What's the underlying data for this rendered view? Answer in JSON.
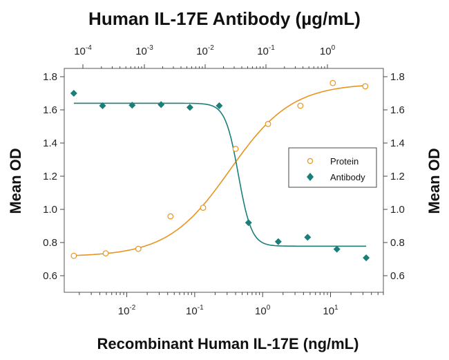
{
  "chart_data": {
    "type": "scatter",
    "title": "Human IL-17E Antibody (µg/mL)",
    "xlabel": "Recombinant Human IL-17E  (ng/mL)",
    "ylabel_left": "Mean OD",
    "ylabel_right": "Mean OD",
    "x_scale": "log",
    "xlim": [
      0.0012,
      60
    ],
    "ylim": [
      0.5,
      1.85
    ],
    "bottom_ticks": [
      {
        "value": 0.01,
        "base": "10",
        "exp": "-2"
      },
      {
        "value": 0.1,
        "base": "10",
        "exp": "-1"
      },
      {
        "value": 1,
        "base": "10",
        "exp": "0"
      },
      {
        "value": 10,
        "base": "10",
        "exp": "1"
      }
    ],
    "top_axis": {
      "label": "Human IL-17E Antibody (µg/mL)",
      "ticks": [
        {
          "base": "10",
          "exp": "-4"
        },
        {
          "base": "10",
          "exp": "-3"
        },
        {
          "base": "10",
          "exp": "-2"
        },
        {
          "base": "10",
          "exp": "-1"
        },
        {
          "base": "10",
          "exp": "0"
        }
      ]
    },
    "y_ticks": [
      "0.6",
      "0.8",
      "1.0",
      "1.2",
      "1.4",
      "1.6",
      "1.8"
    ],
    "legend": {
      "position": "right-middle",
      "entries": [
        {
          "label": "Protein",
          "marker": "circle",
          "color": "#e8941e"
        },
        {
          "label": "Antibody",
          "marker": "diamond",
          "color": "#1a7e79"
        }
      ]
    },
    "series": [
      {
        "name": "Protein",
        "marker": "open-circle",
        "color": "#e8941e",
        "x": [
          0.00166,
          0.0049,
          0.0148,
          0.044,
          0.133,
          0.4,
          1.2,
          3.6,
          10.8,
          32.5
        ],
        "y": [
          0.72,
          0.735,
          0.762,
          0.958,
          1.01,
          1.365,
          1.515,
          1.625,
          1.762,
          1.742
        ],
        "fit": {
          "bottom": 0.715,
          "top": 1.76,
          "ec50": 0.33,
          "hill": 0.95
        }
      },
      {
        "name": "Antibody",
        "marker": "filled-diamond",
        "color": "#1a7e79",
        "x": [
          0.00166,
          0.0044,
          0.012,
          0.032,
          0.085,
          0.23,
          0.62,
          1.7,
          4.6,
          12.4,
          33.5
        ],
        "y": [
          1.7,
          1.625,
          1.628,
          1.632,
          1.615,
          1.625,
          0.92,
          0.805,
          0.832,
          0.76,
          0.708
        ],
        "fit": {
          "bottom": 0.778,
          "top": 1.64,
          "ec50": 0.44,
          "hill": 4.5
        }
      }
    ],
    "grid": false
  }
}
